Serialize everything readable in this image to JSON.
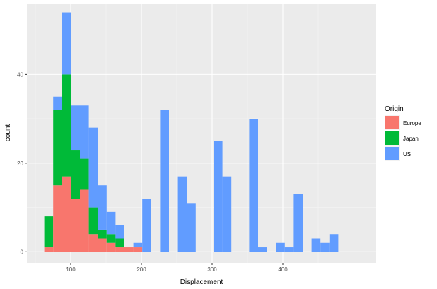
{
  "chart_data": {
    "type": "bar",
    "stacked": true,
    "title": "",
    "xlabel": "Displacement",
    "ylabel": "count",
    "xlim": [
      38,
      532
    ],
    "ylim": [
      -2.5,
      56
    ],
    "x_ticks": [
      100,
      200,
      300,
      400
    ],
    "y_ticks": [
      0,
      20,
      40
    ],
    "bin_width": 12.6,
    "bin_starts": [
      62.6,
      75.2,
      87.8,
      100.4,
      113.0,
      125.6,
      138.2,
      150.8,
      163.4,
      176.0,
      188.6,
      201.2,
      213.8,
      226.4,
      239.0,
      251.6,
      264.2,
      276.8,
      289.4,
      302.0,
      314.6,
      327.2,
      339.8,
      352.4,
      365.0,
      377.6,
      390.2,
      402.8,
      415.4,
      428.0,
      440.6,
      453.2
    ],
    "grid": true,
    "legend": {
      "title": "Origin",
      "position": "right"
    },
    "series": [
      {
        "name": "Europe",
        "color": "#F8766D",
        "values": [
          1,
          15,
          17,
          12,
          14,
          4,
          3,
          2,
          1,
          1,
          1,
          0,
          0,
          0,
          0,
          0,
          0,
          0,
          0,
          0,
          0,
          0,
          0,
          0,
          0,
          0,
          0,
          0,
          0,
          0,
          0,
          0
        ]
      },
      {
        "name": "Japan",
        "color": "#00BA38",
        "values": [
          7,
          17,
          23,
          11,
          7,
          6,
          2,
          2,
          2,
          0,
          0,
          0,
          0,
          0,
          0,
          0,
          0,
          0,
          0,
          0,
          0,
          0,
          0,
          0,
          0,
          0,
          0,
          0,
          0,
          0,
          0,
          0
        ]
      },
      {
        "name": "US",
        "color": "#619CFF",
        "values": [
          0,
          3,
          14,
          10,
          12,
          18,
          10,
          5,
          3,
          0,
          1,
          12,
          0,
          32,
          0,
          17,
          11,
          0,
          0,
          25,
          17,
          0,
          0,
          30,
          1,
          0,
          2,
          1,
          13,
          0,
          3,
          2
        ]
      }
    ],
    "extra_bins": [
      {
        "start": 453.2,
        "series": "US",
        "value": 4
      }
    ]
  }
}
